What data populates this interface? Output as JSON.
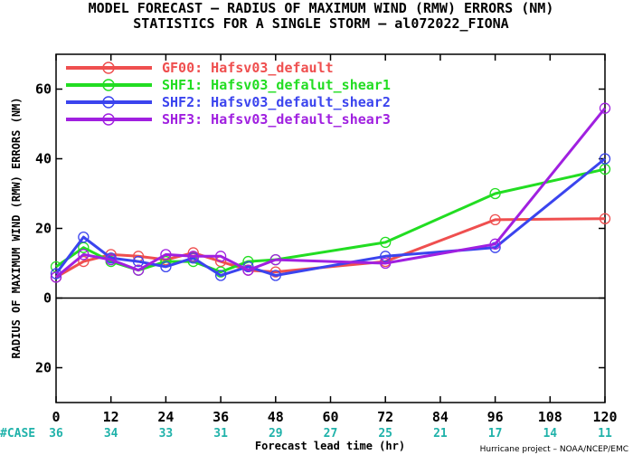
{
  "title_line1": "MODEL FORECAST – RADIUS OF MAXIMUM WIND (RMW) ERRORS (NM)",
  "title_line2": "STATISTICS FOR A SINGLE STORM – al072022_FIONA",
  "credit": "Hurricane project – NOAA/NCEP/EMC",
  "case_label": "#CASE",
  "chart_data": {
    "type": "line",
    "xlabel": "Forecast lead time (hr)",
    "ylabel": "RADIUS OF MAXIMUM WIND (RMW) ERRORS (NM)",
    "xlim": [
      0,
      120
    ],
    "ylim": [
      -30,
      70
    ],
    "x_ticks": [
      0,
      12,
      24,
      36,
      48,
      60,
      72,
      84,
      96,
      108,
      120
    ],
    "y_ticks": [
      -20,
      0,
      20,
      40,
      60
    ],
    "y_tick_labels": [
      "20",
      "0",
      "20",
      "40",
      "60"
    ],
    "grid": false,
    "legend_position": "top-left",
    "case_counts": [
      {
        "x": 0,
        "n": "36"
      },
      {
        "x": 12,
        "n": "34"
      },
      {
        "x": 24,
        "n": "33"
      },
      {
        "x": 36,
        "n": "31"
      },
      {
        "x": 48,
        "n": "29"
      },
      {
        "x": 60,
        "n": "27"
      },
      {
        "x": 72,
        "n": "25"
      },
      {
        "x": 84,
        "n": "21"
      },
      {
        "x": 96,
        "n": "17"
      },
      {
        "x": 108,
        "n": "14"
      },
      {
        "x": 120,
        "n": "11"
      }
    ],
    "series": [
      {
        "name": "GF00: Hafsv03_default",
        "color": "#ef4f4f",
        "x": [
          0,
          6,
          12,
          18,
          24,
          30,
          36,
          42,
          48,
          72,
          96,
          120
        ],
        "y": [
          6,
          10.5,
          12.5,
          12,
          11,
          13,
          10.5,
          8,
          7.5,
          10.5,
          22.5,
          22.8
        ]
      },
      {
        "name": "SHF1: Hafsv03_defalut_shear1",
        "color": "#22dd22",
        "x": [
          0,
          6,
          12,
          18,
          24,
          30,
          36,
          42,
          48,
          72,
          96,
          120
        ],
        "y": [
          9,
          14.5,
          10.5,
          8,
          10.5,
          10.5,
          7.5,
          10.5,
          11,
          16,
          30,
          37
        ]
      },
      {
        "name": "SHF2: Hafsv03_default_shear2",
        "color": "#3b44ee",
        "x": [
          0,
          6,
          12,
          18,
          24,
          30,
          36,
          42,
          48,
          72,
          96,
          120
        ],
        "y": [
          7,
          17.5,
          11.5,
          10.5,
          9,
          11.5,
          6.5,
          9,
          6.5,
          12,
          14.5,
          40
        ]
      },
      {
        "name": "SHF3: Hafsv03_default_shear3",
        "color": "#a020e0",
        "x": [
          0,
          6,
          12,
          18,
          24,
          30,
          36,
          42,
          48,
          72,
          96,
          120
        ],
        "y": [
          6,
          12.5,
          11,
          8,
          12.5,
          12,
          12,
          8,
          11,
          10,
          15.5,
          54.5
        ]
      }
    ]
  }
}
